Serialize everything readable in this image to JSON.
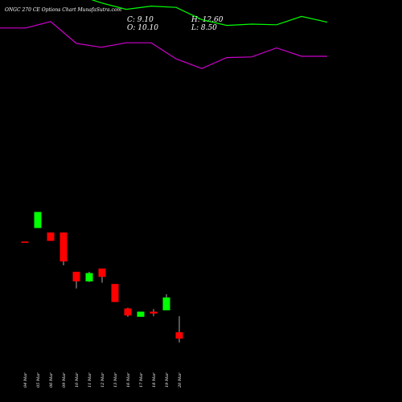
{
  "header": {
    "title": "ONGC 270  CE Options  Chart MunafaSutra.com",
    "close": "C: 9.10",
    "open": "O: 10.10",
    "high": "H: 12.60",
    "low": "L: 8.50"
  },
  "chart_data": {
    "type": "candlestick",
    "title": "ONGC 270  CE Options  Chart MunafaSutra.com",
    "categories": [
      "04 Mar",
      "05 Mar",
      "06 Mar",
      "09 Mar",
      "10 Mar",
      "11 Mar",
      "12 Mar",
      "13 Mar",
      "16 Mar",
      "17 Mar",
      "18 Mar",
      "19 Mar",
      "20 Mar"
    ],
    "candles": [
      {
        "date": "04 Mar",
        "open": 24.2,
        "high": 24.2,
        "low": 24.0,
        "close": 24.0
      },
      {
        "date": "05 Mar",
        "open": 26.3,
        "high": 28.8,
        "low": 26.3,
        "close": 28.8
      },
      {
        "date": "06 Mar",
        "open": 25.6,
        "high": 25.6,
        "low": 24.3,
        "close": 24.3
      },
      {
        "date": "09 Mar",
        "open": 25.6,
        "high": 25.6,
        "low": 20.5,
        "close": 21.1
      },
      {
        "date": "10 Mar",
        "open": 19.5,
        "high": 19.5,
        "low": 16.9,
        "close": 18.0
      },
      {
        "date": "11 Mar",
        "open": 18.0,
        "high": 19.5,
        "low": 17.9,
        "close": 19.3
      },
      {
        "date": "12 Mar",
        "open": 20.0,
        "high": 20.0,
        "low": 17.8,
        "close": 18.7
      },
      {
        "date": "13 Mar",
        "open": 17.6,
        "high": 17.6,
        "low": 14.8,
        "close": 14.8
      },
      {
        "date": "16 Mar",
        "open": 13.8,
        "high": 13.9,
        "low": 12.5,
        "close": 12.7
      },
      {
        "date": "17 Mar",
        "open": 12.5,
        "high": 13.3,
        "low": 12.5,
        "close": 13.3
      },
      {
        "date": "18 Mar",
        "open": 13.3,
        "high": 13.7,
        "low": 12.6,
        "close": 13.0
      },
      {
        "date": "19 Mar",
        "open": 13.5,
        "high": 16.0,
        "low": 13.5,
        "close": 15.5
      },
      {
        "date": "20 Mar",
        "open": 10.1,
        "high": 12.6,
        "low": 8.5,
        "close": 9.1
      }
    ],
    "overlay_series": [
      {
        "color": "#00ff00",
        "points": [
          62.0,
          62.0,
          64.0,
          62.6,
          61.3,
          60.3,
          60.8,
          60.6,
          58.7,
          57.8,
          58.0,
          57.9,
          59.2,
          58.3
        ]
      },
      {
        "color": "#cc00cc",
        "points": [
          57.4,
          57.4,
          58.4,
          55.0,
          54.4,
          55.1,
          55.1,
          52.6,
          51.1,
          52.8,
          52.9,
          54.3,
          53.0,
          53.0
        ]
      }
    ],
    "colors": {
      "up": "#00ff00",
      "down": "#ff0000",
      "background": "#000000",
      "text": "#ffffff"
    }
  }
}
